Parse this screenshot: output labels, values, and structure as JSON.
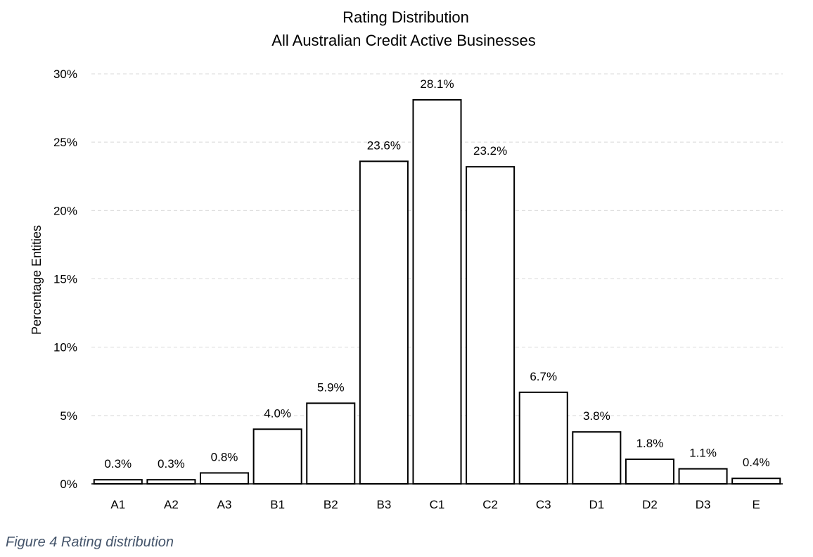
{
  "chart_data": {
    "type": "bar",
    "title": "Rating Distribution",
    "subtitle": "All Australian Credit Active Businesses",
    "xlabel": "",
    "ylabel": "Percentage Entities",
    "categories": [
      "A1",
      "A2",
      "A3",
      "B1",
      "B2",
      "B3",
      "C1",
      "C2",
      "C3",
      "D1",
      "D2",
      "D3",
      "E"
    ],
    "values": [
      0.3,
      0.3,
      0.8,
      4.0,
      5.9,
      23.6,
      28.1,
      23.2,
      6.7,
      3.8,
      1.8,
      1.1,
      0.4
    ],
    "data_labels": [
      "0.3%",
      "0.3%",
      "0.8%",
      "4.0%",
      "5.9%",
      "23.6%",
      "28.1%",
      "23.2%",
      "6.7%",
      "3.8%",
      "1.8%",
      "1.1%",
      "0.4%"
    ],
    "y_ticks": [
      0,
      5,
      10,
      15,
      20,
      25,
      30
    ],
    "y_tick_labels": [
      "0%",
      "5%",
      "10%",
      "15%",
      "20%",
      "25%",
      "30%"
    ],
    "ylim": [
      0,
      30
    ],
    "grid": true,
    "legend": "none",
    "bar_fill": "#ffffff",
    "bar_stroke": "#000000",
    "grid_color": "#d9d9d9"
  },
  "caption": "Figure 4 Rating distribution",
  "caption_color": "#44546a"
}
